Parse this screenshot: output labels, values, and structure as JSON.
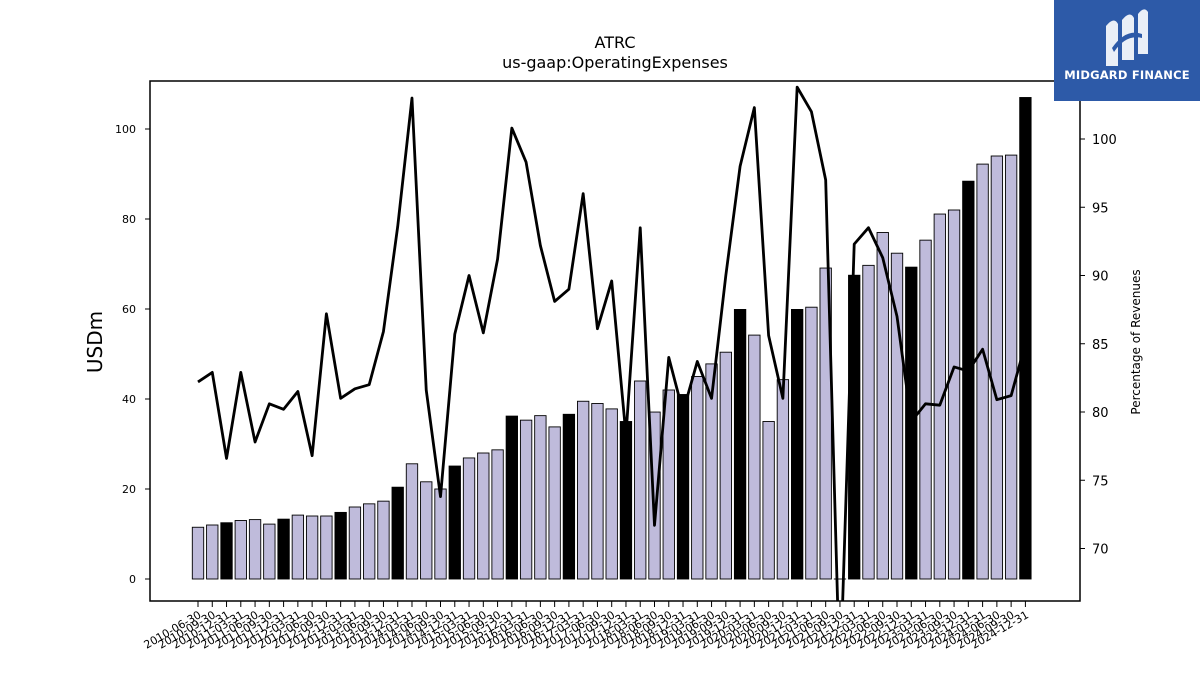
{
  "chart_data": {
    "type": "bar",
    "title": "ATRC",
    "subtitle": "us-gaap:OperatingExpenses",
    "ylabel": "USDm",
    "y2label": "Percentage of Revenues",
    "ylim": [
      -5,
      110
    ],
    "y2lim": [
      66,
      111
    ],
    "yticks": [
      0,
      20,
      40,
      60,
      80,
      100
    ],
    "y2ticks": [
      70,
      75,
      80,
      85,
      90,
      95,
      100
    ],
    "categories": [
      "2010-06-30",
      "2010-09-30",
      "2010-12-31",
      "2011-03-31",
      "2011-06-30",
      "2011-09-30",
      "2011-12-31",
      "2012-03-31",
      "2012-06-30",
      "2012-09-30",
      "2012-12-31",
      "2013-03-31",
      "2013-06-30",
      "2013-09-30",
      "2013-12-31",
      "2014-03-31",
      "2014-06-30",
      "2014-09-30",
      "2014-12-31",
      "2015-03-31",
      "2015-06-30",
      "2015-09-30",
      "2015-12-31",
      "2016-03-31",
      "2016-06-30",
      "2016-09-30",
      "2016-12-31",
      "2017-03-31",
      "2017-06-30",
      "2017-09-30",
      "2017-12-31",
      "2018-03-31",
      "2018-06-30",
      "2018-09-30",
      "2018-12-31",
      "2019-03-31",
      "2019-06-30",
      "2019-09-30",
      "2019-12-31",
      "2020-03-31",
      "2020-06-30",
      "2020-09-30",
      "2020-12-31",
      "2021-03-31",
      "2021-06-30",
      "2021-09-30",
      "2021-12-31",
      "2022-03-31",
      "2022-06-30",
      "2022-09-30",
      "2022-12-31",
      "2023-03-31",
      "2023-06-30",
      "2023-09-30",
      "2023-12-31",
      "2024-03-31",
      "2024-06-30",
      "2024-09-30",
      "2024-12-31"
    ],
    "series": [
      {
        "type": "bar",
        "axis": "left",
        "values": [
          11.5,
          12,
          12.5,
          13,
          13.2,
          12.2,
          13.3,
          14.2,
          14,
          14,
          14.8,
          16,
          16.7,
          17.3,
          20.4,
          25.6,
          21.6,
          20,
          25.1,
          26.9,
          28,
          28.7,
          36.2,
          35.3,
          36.3,
          33.8,
          36.6,
          39.5,
          39,
          37.8,
          35,
          44,
          37.1,
          42,
          41,
          45,
          47.8,
          50.4,
          59.9,
          54.2,
          35,
          44.3,
          59.9,
          60.4,
          69.1,
          0,
          67.5,
          69.7,
          77,
          72.4,
          69.3,
          75.3,
          81.1,
          82,
          88.4,
          92.2,
          94,
          94.2,
          107
        ],
        "highlight": [
          false,
          false,
          true,
          false,
          false,
          false,
          true,
          false,
          false,
          false,
          true,
          false,
          false,
          false,
          true,
          false,
          false,
          false,
          true,
          false,
          false,
          false,
          true,
          false,
          false,
          false,
          true,
          false,
          false,
          false,
          true,
          false,
          false,
          false,
          true,
          false,
          false,
          false,
          true,
          false,
          false,
          false,
          true,
          false,
          false,
          false,
          true,
          false,
          false,
          false,
          true,
          false,
          false,
          false,
          true,
          false,
          false,
          false,
          true
        ]
      },
      {
        "type": "line",
        "axis": "right",
        "values": [
          82.2,
          82.9,
          76.6,
          82.9,
          77.8,
          80.6,
          80.2,
          81.5,
          76.8,
          87.2,
          81,
          81.7,
          82,
          85.9,
          93.6,
          103,
          81.6,
          73.8,
          85.7,
          90,
          85.8,
          91.2,
          100.8,
          98.3,
          92.2,
          88.1,
          89,
          96,
          86.1,
          89.6,
          78.3,
          93.5,
          71.7,
          84,
          80,
          83.7,
          81,
          90,
          98,
          102.3,
          85.6,
          81,
          103.8,
          102,
          97,
          60,
          92.3,
          93.5,
          91.3,
          87,
          79.3,
          80.6,
          80.5,
          83.3,
          83,
          84.6,
          80.9,
          81.2,
          85
        ]
      }
    ],
    "colors": {
      "bar_fill": "#bfbbdb",
      "bar_highlight_fill": "#000000",
      "bar_stroke": "#000000",
      "line": "#000000"
    }
  },
  "logo": {
    "text": "MIDGARD FINANCE",
    "icon": "midgard-m-logo-icon",
    "background": "#2d5aa8"
  }
}
